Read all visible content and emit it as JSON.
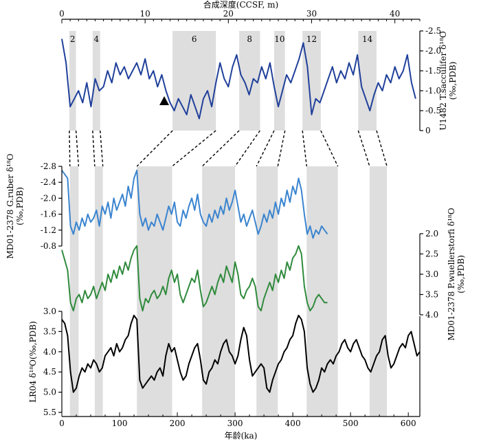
{
  "chart_data": {
    "type": "line",
    "top_axis": {
      "title": "合成深度(CCSF, m)",
      "ticks": [
        0,
        10,
        20,
        30,
        40
      ],
      "range": [
        0,
        43
      ]
    },
    "bottom_axis": {
      "title": "年龄(ka)",
      "ticks": [
        0,
        100,
        200,
        300,
        400,
        500,
        600
      ],
      "range": [
        0,
        620
      ]
    },
    "panels": [
      {
        "ylabel": "U1482 T.sacculifer δ¹⁸O (‰,PDB)",
        "ylabel_lines": [
          "U1482 T.sacculifer δ¹⁸O",
          "(‰,PDB)"
        ],
        "side": "right",
        "ticks": [
          "-2.5",
          "-2.0",
          "-1.5",
          "-1.0",
          "-0.5",
          "0"
        ],
        "ylim": [
          -2.5,
          0
        ],
        "inverted": true,
        "color": "#1f3f9a",
        "x_unit": "m",
        "x": [
          0,
          0.5,
          1,
          1.5,
          2,
          2.5,
          3,
          3.5,
          4,
          4.5,
          5,
          5.5,
          6,
          6.5,
          7,
          7.5,
          8,
          8.5,
          9,
          9.5,
          10,
          10.5,
          11,
          11.5,
          12,
          12.5,
          13,
          13.5,
          14,
          14.5,
          15,
          15.5,
          16,
          16.5,
          17,
          17.5,
          18,
          18.5,
          19,
          19.5,
          20,
          20.5,
          21,
          21.5,
          22,
          22.5,
          23,
          23.5,
          24,
          24.5,
          25,
          25.5,
          26,
          26.5,
          27,
          27.5,
          28,
          28.5,
          29,
          29.5,
          30,
          30.5,
          31,
          31.5,
          32,
          32.5,
          33,
          33.5,
          34,
          34.5,
          35,
          35.5,
          36,
          36.5,
          37,
          37.5,
          38,
          38.5,
          39,
          39.5,
          40,
          40.5,
          41,
          41.5,
          42,
          42.5
        ],
        "values": [
          -2.3,
          -1.7,
          -0.6,
          -0.8,
          -1.0,
          -0.7,
          -1.2,
          -0.6,
          -1.3,
          -1.0,
          -1.1,
          -1.5,
          -1.2,
          -1.7,
          -1.4,
          -1.6,
          -1.3,
          -1.5,
          -1.7,
          -1.4,
          -1.8,
          -1.3,
          -1.5,
          -1.1,
          -1.4,
          -1.0,
          -0.7,
          -0.5,
          -0.8,
          -0.6,
          -0.4,
          -0.9,
          -0.6,
          -0.3,
          -0.8,
          -1.0,
          -0.6,
          -1.2,
          -1.7,
          -1.3,
          -1.1,
          -1.6,
          -1.9,
          -1.4,
          -1.2,
          -0.9,
          -1.3,
          -1.2,
          -1.6,
          -1.3,
          -1.7,
          -1.1,
          -0.6,
          -1.0,
          -1.4,
          -1.2,
          -1.5,
          -1.8,
          -2.2,
          -1.6,
          -0.4,
          -0.8,
          -0.7,
          -1.0,
          -1.3,
          -1.6,
          -1.2,
          -1.5,
          -1.3,
          -1.7,
          -1.4,
          -1.9,
          -1.1,
          -0.8,
          -0.5,
          -0.9,
          -1.2,
          -1.0,
          -1.4,
          -1.2,
          -1.6,
          -1.3,
          -1.5,
          -1.9,
          -1.2,
          -0.8
        ]
      },
      {
        "ylabel": "MD01-2378 G.ruber δ¹⁸O (‰,PDB)",
        "ylabel_lines": [
          "MD01-2378 G.ruber δ¹⁸O",
          "(‰,PDB)"
        ],
        "side": "left",
        "ticks": [
          "-2.8",
          "-2.4",
          "-2.0",
          "-1.6",
          "-1.2",
          "-0.8"
        ],
        "ylim": [
          -2.8,
          -0.8
        ],
        "inverted": true,
        "color": "#3a84cf",
        "x_unit": "ka",
        "x": [
          0,
          10,
          15,
          20,
          25,
          30,
          35,
          40,
          45,
          50,
          55,
          60,
          65,
          70,
          75,
          80,
          85,
          90,
          95,
          100,
          105,
          110,
          115,
          120,
          125,
          130,
          135,
          140,
          145,
          150,
          155,
          160,
          165,
          170,
          175,
          180,
          185,
          190,
          195,
          200,
          205,
          210,
          215,
          220,
          225,
          230,
          235,
          240,
          245,
          250,
          255,
          260,
          265,
          270,
          275,
          280,
          285,
          290,
          295,
          300,
          305,
          310,
          315,
          320,
          325,
          330,
          335,
          340,
          345,
          350,
          355,
          360,
          365,
          370,
          375,
          380,
          385,
          390,
          395,
          400,
          405,
          410,
          415,
          420,
          425,
          430,
          435,
          440,
          445,
          450,
          455,
          460
        ],
        "values": [
          -2.7,
          -2.5,
          -1.3,
          -1.1,
          -1.4,
          -1.2,
          -1.5,
          -1.3,
          -1.6,
          -1.4,
          -1.5,
          -1.7,
          -1.3,
          -1.8,
          -1.6,
          -1.9,
          -1.5,
          -2.0,
          -1.7,
          -1.9,
          -2.1,
          -1.8,
          -2.3,
          -2.0,
          -2.5,
          -2.7,
          -1.6,
          -1.3,
          -1.5,
          -1.2,
          -1.4,
          -1.3,
          -1.6,
          -1.4,
          -1.2,
          -1.5,
          -1.8,
          -1.6,
          -1.9,
          -1.4,
          -1.3,
          -1.7,
          -1.5,
          -1.8,
          -2.0,
          -1.7,
          -2.1,
          -1.6,
          -1.4,
          -1.3,
          -1.6,
          -1.4,
          -1.7,
          -1.5,
          -1.8,
          -1.6,
          -2.0,
          -1.7,
          -1.9,
          -2.2,
          -1.8,
          -1.4,
          -1.6,
          -1.3,
          -1.5,
          -1.7,
          -1.4,
          -1.1,
          -1.3,
          -1.6,
          -1.4,
          -1.7,
          -1.5,
          -1.9,
          -1.6,
          -2.0,
          -1.8,
          -2.2,
          -1.9,
          -2.3,
          -2.1,
          -2.5,
          -2.2,
          -1.6,
          -1.1,
          -1.3,
          -1.0,
          -1.2,
          -1.1,
          -1.3,
          -1.2,
          -1.1
        ]
      },
      {
        "ylabel": "MD01-2378 P.wuellerstorfi δ¹⁸O (‰,PDB)",
        "ylabel_lines": [
          "MD01-2378 P.wuellerstorfi δ¹⁸O",
          "(‰,PDB)"
        ],
        "side": "right",
        "ticks": [
          "2.0",
          "2.5",
          "3.0",
          "3.5",
          "4.0"
        ],
        "ylim": [
          2.0,
          4.0
        ],
        "inverted": true,
        "color": "#2f8a3c",
        "x_unit": "ka",
        "x": [
          0,
          10,
          15,
          20,
          25,
          30,
          35,
          40,
          45,
          50,
          55,
          60,
          65,
          70,
          75,
          80,
          85,
          90,
          95,
          100,
          105,
          110,
          115,
          120,
          125,
          130,
          135,
          140,
          145,
          150,
          155,
          160,
          165,
          170,
          175,
          180,
          185,
          190,
          195,
          200,
          205,
          210,
          215,
          220,
          225,
          230,
          235,
          240,
          245,
          250,
          255,
          260,
          265,
          270,
          275,
          280,
          285,
          290,
          295,
          300,
          305,
          310,
          315,
          320,
          325,
          330,
          335,
          340,
          345,
          350,
          355,
          360,
          365,
          370,
          375,
          380,
          385,
          390,
          395,
          400,
          405,
          410,
          415,
          420,
          425,
          430,
          435,
          440,
          445,
          450,
          455,
          460
        ],
        "values": [
          2.4,
          2.9,
          3.7,
          3.9,
          3.6,
          3.5,
          3.7,
          3.4,
          3.6,
          3.5,
          3.3,
          3.6,
          3.4,
          3.2,
          3.4,
          3.0,
          3.2,
          2.9,
          3.1,
          2.8,
          3.0,
          2.7,
          2.9,
          2.6,
          2.4,
          2.3,
          3.6,
          3.9,
          3.6,
          3.7,
          3.5,
          3.4,
          3.6,
          3.5,
          3.3,
          3.5,
          3.1,
          2.9,
          3.2,
          3.0,
          3.5,
          3.7,
          3.5,
          3.3,
          3.1,
          3.2,
          2.9,
          3.4,
          3.8,
          3.7,
          3.5,
          3.3,
          3.5,
          3.2,
          3.0,
          3.2,
          2.8,
          3.0,
          3.2,
          2.7,
          3.0,
          3.5,
          3.6,
          3.4,
          3.3,
          3.1,
          3.3,
          3.8,
          3.9,
          3.6,
          3.4,
          3.2,
          3.4,
          3.0,
          3.2,
          2.9,
          3.1,
          2.7,
          2.9,
          2.6,
          2.5,
          2.3,
          2.5,
          3.3,
          3.7,
          3.9,
          3.8,
          3.6,
          3.5,
          3.6,
          3.7,
          3.7
        ]
      },
      {
        "ylabel": "LR04 δ¹⁸O(‰,PDB)",
        "ylabel_lines": [
          "LR04 δ¹⁸O(‰,PDB)"
        ],
        "side": "left",
        "ticks": [
          "3.0",
          "3.5",
          "4.0",
          "4.5",
          "5.0",
          "5.5"
        ],
        "ylim": [
          3.0,
          5.5
        ],
        "inverted": true,
        "color": "#000000",
        "x_unit": "ka",
        "x": [
          0,
          5,
          10,
          15,
          20,
          25,
          30,
          35,
          40,
          45,
          50,
          55,
          60,
          65,
          70,
          75,
          80,
          85,
          90,
          95,
          100,
          105,
          110,
          115,
          120,
          125,
          130,
          135,
          140,
          145,
          150,
          155,
          160,
          165,
          170,
          175,
          180,
          185,
          190,
          195,
          200,
          205,
          210,
          215,
          220,
          225,
          230,
          235,
          240,
          245,
          250,
          255,
          260,
          265,
          270,
          275,
          280,
          285,
          290,
          295,
          300,
          305,
          310,
          315,
          320,
          325,
          330,
          335,
          340,
          345,
          350,
          355,
          360,
          365,
          370,
          375,
          380,
          385,
          390,
          395,
          400,
          405,
          410,
          415,
          420,
          425,
          430,
          435,
          440,
          445,
          450,
          455,
          460,
          465,
          470,
          475,
          480,
          485,
          490,
          495,
          500,
          505,
          510,
          515,
          520,
          525,
          530,
          535,
          540,
          545,
          550,
          555,
          560,
          565,
          570,
          575,
          580,
          585,
          590,
          595,
          600,
          605,
          610,
          615,
          620
        ],
        "values": [
          3.2,
          3.3,
          3.6,
          4.5,
          5.0,
          4.9,
          4.6,
          4.4,
          4.5,
          4.3,
          4.4,
          4.2,
          4.3,
          4.5,
          4.4,
          4.1,
          4.0,
          3.9,
          4.1,
          3.8,
          4.0,
          3.9,
          3.7,
          3.6,
          3.3,
          3.1,
          3.2,
          4.7,
          4.9,
          4.8,
          4.7,
          4.6,
          4.7,
          4.5,
          4.4,
          4.6,
          4.1,
          3.8,
          4.0,
          3.9,
          4.2,
          4.5,
          4.7,
          4.6,
          4.3,
          4.1,
          3.9,
          3.8,
          4.2,
          4.7,
          4.8,
          4.5,
          4.4,
          4.2,
          4.3,
          4.0,
          3.8,
          3.7,
          4.0,
          4.1,
          4.3,
          4.1,
          3.7,
          3.4,
          3.6,
          4.2,
          4.6,
          4.5,
          4.4,
          4.3,
          4.4,
          4.9,
          5.0,
          4.7,
          4.5,
          4.3,
          4.2,
          4.0,
          3.9,
          3.7,
          3.6,
          3.3,
          3.1,
          3.2,
          3.5,
          4.4,
          4.8,
          5.0,
          4.9,
          4.7,
          4.4,
          4.5,
          4.3,
          4.2,
          4.3,
          4.1,
          4.0,
          3.8,
          3.7,
          3.9,
          4.0,
          3.8,
          3.7,
          3.9,
          4.1,
          4.2,
          4.4,
          4.5,
          4.3,
          4.1,
          4.0,
          3.7,
          3.6,
          4.1,
          4.4,
          4.3,
          4.1,
          3.9,
          3.8,
          3.9,
          3.6,
          3.5,
          3.8,
          4.1,
          4.0
        ]
      }
    ],
    "stages": {
      "labels": [
        "2",
        "4",
        "6",
        "8",
        "10",
        "12",
        "14"
      ],
      "depth_bands": [
        [
          0.9,
          1.7
        ],
        [
          3.7,
          4.6
        ],
        [
          13.3,
          18.5
        ],
        [
          21.3,
          23.8
        ],
        [
          25.5,
          26.8
        ],
        [
          28.9,
          31.1
        ],
        [
          35.6,
          37.8
        ]
      ],
      "age_bands": [
        [
          14,
          29
        ],
        [
          57,
          71
        ],
        [
          130,
          191
        ],
        [
          243,
          300
        ],
        [
          337,
          374
        ],
        [
          424,
          478
        ],
        [
          533,
          563
        ]
      ]
    },
    "marker": {
      "shape": "triangle",
      "depth": 12.3
    }
  }
}
